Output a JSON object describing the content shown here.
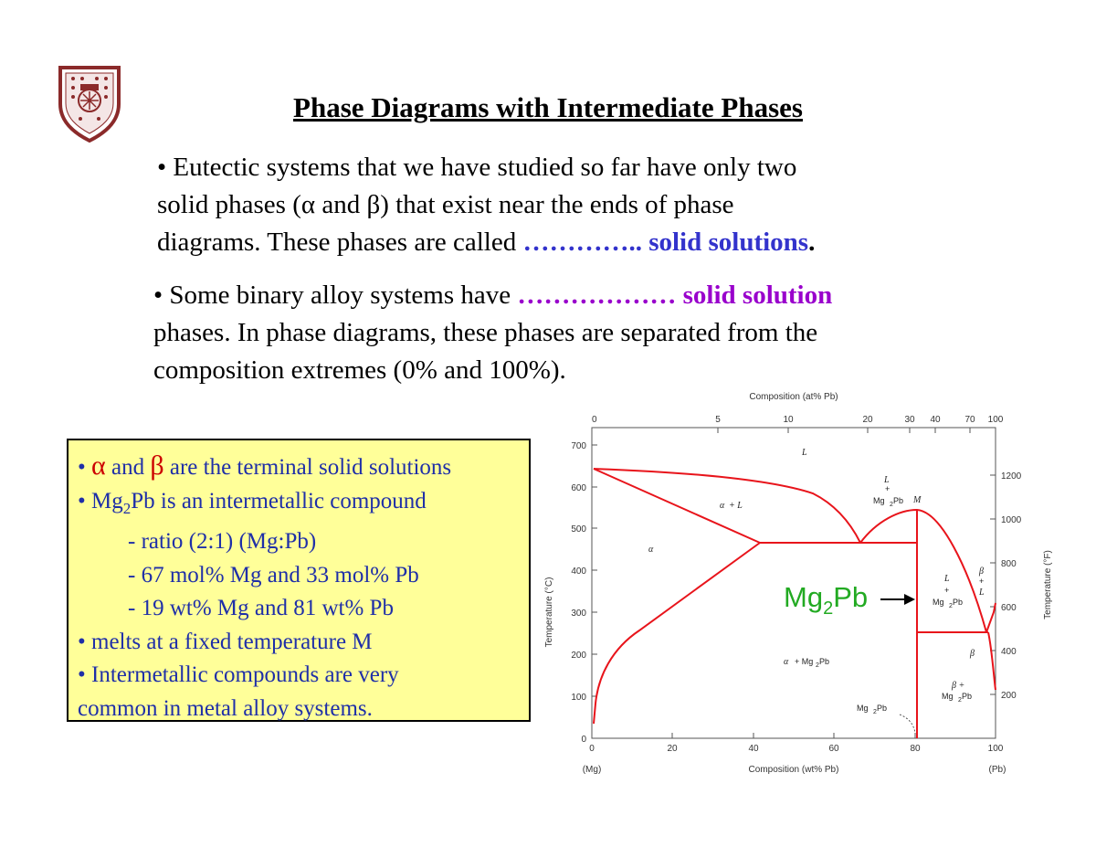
{
  "title": "Phase Diagrams with Intermediate Phases",
  "para1": {
    "line1": "• Eutectic systems that we have studied so far have only two",
    "line2a": "solid phases (",
    "alpha": "α",
    "line2b": " and ",
    "beta": "β",
    "line2c": ") that exist near the ends of phase",
    "line3a": "diagrams. These phases are called ",
    "line3b": "………….. solid solutions",
    "line3c": "."
  },
  "para2": {
    "line1a": "• Some binary alloy systems have ",
    "line1b": "……………… solid solution",
    "line2": "phases. In phase diagrams, these phases are separated from the",
    "line3": "composition extremes (0% and 100%)."
  },
  "notes": {
    "b1_bullet": "• ",
    "b1_alpha": "α",
    "b1_and": " and ",
    "b1_beta": "β",
    "b1_rest": " are the terminal solid solutions",
    "b2a": "• Mg",
    "b2sub": "2",
    "b2b": "Pb is an intermetallic compound",
    "s1": "- ratio (2:1) (Mg:Pb)",
    "s2": "- 67 mol% Mg and 33 mol% Pb",
    "s3": "- 19 wt% Mg and 81 wt% Pb",
    "b3": "• melts at a fixed temperature M",
    "b4": "• Intermetallic compounds are very",
    "b5": "common in metal alloy systems."
  },
  "diagram": {
    "top_axis_title": "Composition (at% Pb)",
    "top_ticks": [
      "0",
      "5",
      "10",
      "20",
      "30",
      "40",
      "70",
      "100"
    ],
    "bottom_axis_title": "Composition (wt% Pb)",
    "bottom_ticks": [
      "0",
      "20",
      "40",
      "60",
      "80",
      "100"
    ],
    "end_left": "(Mg)",
    "end_right": "(Pb)",
    "left_axis_title": "Temperature (°C)",
    "left_ticks": [
      "0",
      "100",
      "200",
      "300",
      "400",
      "500",
      "600",
      "700"
    ],
    "right_axis_title": "Temperature (°F)",
    "right_ticks": [
      "200",
      "400",
      "600",
      "800",
      "1000",
      "1200"
    ],
    "regions": {
      "L": "L",
      "alpha_L_a": "α",
      "alpha_L_b": "+ L",
      "alpha": "α",
      "L_mg2pb_1": "L",
      "L_mg2pb_2": "+",
      "L_mg2pb_3": "Mg",
      "L_mg2pb_4": "Pb",
      "M": "M",
      "L_mg2pb_r1": "L",
      "L_mg2pb_r2": "+",
      "L_mg2pb_r3": "Mg",
      "L_mg2pb_r4": "Pb",
      "beta_L_1": "β",
      "beta_L_2": "+",
      "beta_L_3": "L",
      "beta": "β",
      "alpha_mg2pb_a": "α",
      "alpha_mg2pb_b": "+ Mg",
      "alpha_mg2pb_c": "Pb",
      "beta_mg2pb_1": "β +",
      "beta_mg2pb_2": "Mg",
      "beta_mg2pb_3": "Pb",
      "mg2pb_label_a": "Mg",
      "mg2pb_label_b": "Pb",
      "sub2": "2"
    },
    "callout_a": "Mg",
    "callout_sub": "2",
    "callout_b": "Pb",
    "line_color": "#e8141b",
    "callout_color": "#22aa22"
  }
}
